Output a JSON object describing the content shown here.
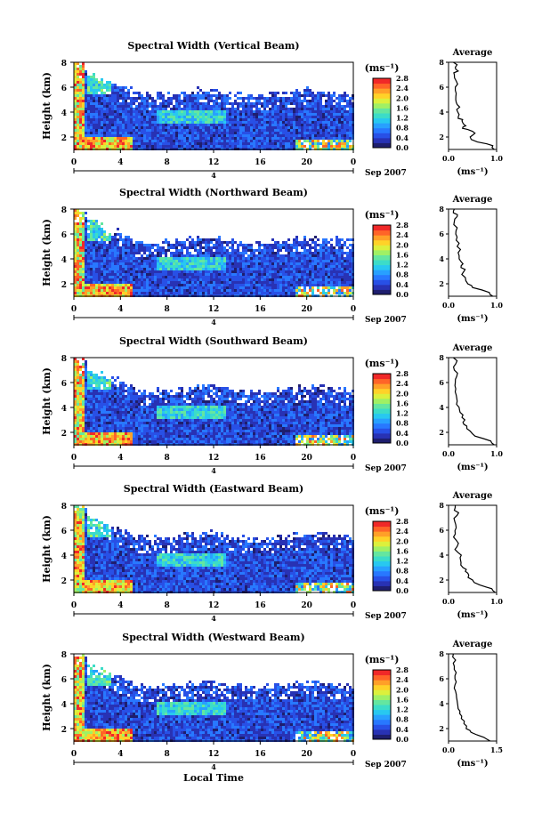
{
  "figure": {
    "xlabel": "Local Time",
    "date_label": "Sep 2007",
    "unit_label": "(ms⁻¹)",
    "average_title": "Average",
    "ylabel": "Height (km)",
    "day_marker": "4"
  },
  "colors": {
    "colormap": [
      "#1e1e6e",
      "#2832b4",
      "#2850e6",
      "#2878ff",
      "#28a0ff",
      "#28c8f0",
      "#3cdcc8",
      "#64e6a0",
      "#a0f064",
      "#dcf03c",
      "#ffd228",
      "#ffa028",
      "#ff6428",
      "#f02828"
    ],
    "background": "#ffffff"
  },
  "chart_data": [
    {
      "type": "heatmap",
      "title": "Spectral Width (Vertical Beam)",
      "xlabel": "Local Time",
      "ylabel": "Height (km)",
      "xticks": [
        "0",
        "4",
        "8",
        "12",
        "16",
        "20",
        "0"
      ],
      "xlim": [
        0,
        24
      ],
      "yticks": [
        "2",
        "4",
        "6",
        "8"
      ],
      "ylim": [
        1,
        8
      ],
      "colorbar": {
        "label": "(ms⁻¹)",
        "ticks": [
          "0.0",
          "0.4",
          "0.8",
          "1.2",
          "1.6",
          "2.0",
          "2.4",
          "2.8"
        ],
        "range": [
          0.0,
          2.8
        ]
      },
      "average": {
        "title": "Average",
        "xlabel": "(ms⁻¹)",
        "xticks": [
          "0.0",
          "1.0"
        ],
        "xlim": [
          0.0,
          1.0
        ],
        "profile": [
          [
            1.0,
            0.95
          ],
          [
            1.3,
            0.92
          ],
          [
            1.6,
            0.6
          ],
          [
            2.0,
            0.45
          ],
          [
            2.3,
            0.55
          ],
          [
            2.6,
            0.4
          ],
          [
            2.8,
            0.3
          ],
          [
            3.0,
            0.32
          ],
          [
            3.3,
            0.28
          ],
          [
            3.5,
            0.2
          ],
          [
            3.8,
            0.22
          ],
          [
            4.2,
            0.17
          ],
          [
            4.6,
            0.18
          ],
          [
            5.0,
            0.15
          ],
          [
            5.5,
            0.16
          ],
          [
            6.0,
            0.14
          ],
          [
            6.5,
            0.16
          ],
          [
            7.0,
            0.12
          ],
          [
            7.3,
            0.2
          ],
          [
            7.6,
            0.14
          ],
          [
            8.0,
            0.1
          ]
        ]
      }
    },
    {
      "type": "heatmap",
      "title": "Spectral Width (Northward Beam)",
      "xlabel": "Local Time",
      "ylabel": "Height (km)",
      "xticks": [
        "0",
        "4",
        "8",
        "12",
        "16",
        "20",
        "0"
      ],
      "xlim": [
        0,
        24
      ],
      "yticks": [
        "2",
        "4",
        "6",
        "8"
      ],
      "ylim": [
        1,
        8
      ],
      "colorbar": {
        "label": "(ms⁻¹)",
        "ticks": [
          "0.0",
          "0.4",
          "0.8",
          "1.2",
          "1.6",
          "2.0",
          "2.4",
          "2.8"
        ],
        "range": [
          0.0,
          2.8
        ]
      },
      "average": {
        "title": "Average",
        "xlabel": "(ms⁻¹)",
        "xticks": [
          "0.0",
          "1.0"
        ],
        "xlim": [
          0.0,
          1.0
        ],
        "profile": [
          [
            1.0,
            0.92
          ],
          [
            1.3,
            0.85
          ],
          [
            1.7,
            0.5
          ],
          [
            2.0,
            0.4
          ],
          [
            2.5,
            0.35
          ],
          [
            3.0,
            0.32
          ],
          [
            3.3,
            0.26
          ],
          [
            3.6,
            0.3
          ],
          [
            4.0,
            0.22
          ],
          [
            4.5,
            0.2
          ],
          [
            5.0,
            0.18
          ],
          [
            5.5,
            0.16
          ],
          [
            6.0,
            0.15
          ],
          [
            6.5,
            0.18
          ],
          [
            7.0,
            0.12
          ],
          [
            7.4,
            0.18
          ],
          [
            7.7,
            0.1
          ],
          [
            8.0,
            0.12
          ]
        ]
      }
    },
    {
      "type": "heatmap",
      "title": "Spectral Width (Southward Beam)",
      "xlabel": "Local Time",
      "ylabel": "Height (km)",
      "xticks": [
        "0",
        "4",
        "8",
        "12",
        "16",
        "20",
        "0"
      ],
      "xlim": [
        0,
        24
      ],
      "yticks": [
        "2",
        "4",
        "6",
        "8"
      ],
      "ylim": [
        1,
        8
      ],
      "colorbar": {
        "label": "(ms⁻¹)",
        "ticks": [
          "0.0",
          "0.4",
          "0.8",
          "1.2",
          "1.6",
          "2.0",
          "2.4",
          "2.8"
        ],
        "range": [
          0.0,
          2.8
        ]
      },
      "average": {
        "title": "Average",
        "xlabel": "(ms⁻¹)",
        "xticks": [
          "0.0",
          "1.0"
        ],
        "xlim": [
          0.0,
          1.0
        ],
        "profile": [
          [
            1.0,
            0.95
          ],
          [
            1.3,
            0.88
          ],
          [
            1.7,
            0.55
          ],
          [
            2.1,
            0.45
          ],
          [
            2.5,
            0.38
          ],
          [
            2.8,
            0.3
          ],
          [
            3.2,
            0.28
          ],
          [
            3.6,
            0.24
          ],
          [
            4.0,
            0.22
          ],
          [
            4.5,
            0.18
          ],
          [
            5.0,
            0.16
          ],
          [
            5.5,
            0.15
          ],
          [
            6.0,
            0.14
          ],
          [
            6.5,
            0.17
          ],
          [
            7.0,
            0.12
          ],
          [
            7.5,
            0.15
          ],
          [
            8.0,
            0.1
          ]
        ]
      }
    },
    {
      "type": "heatmap",
      "title": "Spectral Width (Eastward Beam)",
      "xlabel": "Local Time",
      "ylabel": "Height (km)",
      "xticks": [
        "0",
        "4",
        "8",
        "12",
        "16",
        "20",
        "0"
      ],
      "xlim": [
        0,
        24
      ],
      "yticks": [
        "2",
        "4",
        "6",
        "8"
      ],
      "ylim": [
        1,
        8
      ],
      "colorbar": {
        "label": "(ms⁻¹)",
        "ticks": [
          "0.0",
          "0.4",
          "0.8",
          "1.2",
          "1.6",
          "2.0",
          "2.4",
          "2.8"
        ],
        "range": [
          0.0,
          2.8
        ]
      },
      "average": {
        "title": "Average",
        "xlabel": "(ms⁻¹)",
        "xticks": [
          "0.0",
          "1.0"
        ],
        "xlim": [
          0.0,
          1.0
        ],
        "profile": [
          [
            1.0,
            0.97
          ],
          [
            1.3,
            0.9
          ],
          [
            1.6,
            0.65
          ],
          [
            2.0,
            0.5
          ],
          [
            2.4,
            0.42
          ],
          [
            2.7,
            0.35
          ],
          [
            3.0,
            0.3
          ],
          [
            3.4,
            0.26
          ],
          [
            3.8,
            0.24
          ],
          [
            4.2,
            0.2
          ],
          [
            4.7,
            0.18
          ],
          [
            5.2,
            0.16
          ],
          [
            5.7,
            0.14
          ],
          [
            6.2,
            0.16
          ],
          [
            6.7,
            0.13
          ],
          [
            7.2,
            0.18
          ],
          [
            7.6,
            0.12
          ],
          [
            8.0,
            0.14
          ]
        ]
      }
    },
    {
      "type": "heatmap",
      "title": "Spectral Width (Westward Beam)",
      "xlabel": "Local Time",
      "ylabel": "Height (km)",
      "xticks": [
        "0",
        "4",
        "8",
        "12",
        "16",
        "20",
        "0"
      ],
      "xlim": [
        0,
        24
      ],
      "yticks": [
        "2",
        "4",
        "6",
        "8"
      ],
      "ylim": [
        1,
        8
      ],
      "colorbar": {
        "label": "(ms⁻¹)",
        "ticks": [
          "0.0",
          "0.4",
          "0.8",
          "1.2",
          "1.6",
          "2.0",
          "2.4",
          "2.8"
        ],
        "range": [
          0.0,
          2.8
        ]
      },
      "average": {
        "title": "Average",
        "xlabel": "(ms⁻¹)",
        "xticks": [
          "0.0",
          "1.5"
        ],
        "xlim": [
          0.0,
          1.5
        ],
        "profile": [
          [
            1.0,
            1.3
          ],
          [
            1.3,
            1.1
          ],
          [
            1.7,
            0.7
          ],
          [
            2.0,
            0.55
          ],
          [
            2.4,
            0.48
          ],
          [
            2.8,
            0.4
          ],
          [
            3.2,
            0.35
          ],
          [
            3.6,
            0.3
          ],
          [
            4.0,
            0.28
          ],
          [
            4.5,
            0.25
          ],
          [
            5.0,
            0.22
          ],
          [
            5.5,
            0.2
          ],
          [
            6.0,
            0.2
          ],
          [
            6.5,
            0.24
          ],
          [
            7.0,
            0.18
          ],
          [
            7.5,
            0.22
          ],
          [
            8.0,
            0.15
          ]
        ]
      }
    }
  ]
}
